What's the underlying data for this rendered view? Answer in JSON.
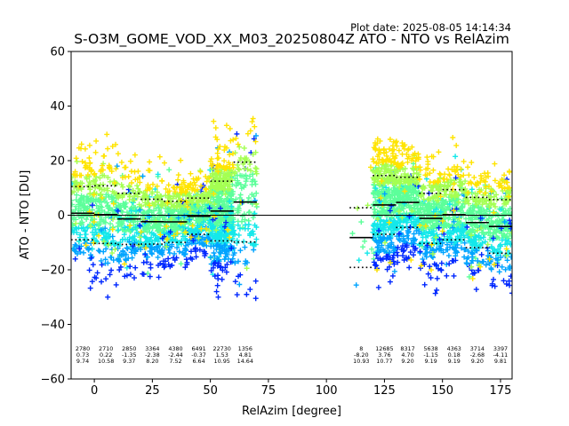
{
  "plot_date": "Plot date: 2025-08-05 14:14:34",
  "chart_data": {
    "type": "scatter",
    "title": "S-O3M_GOME_VOD_XX_M03_20250804Z ATO - NTO vs RelAzim",
    "xlabel": "RelAzim [degree]",
    "ylabel": "ATO - NTO [DU]",
    "xlim": [
      -10,
      180
    ],
    "ylim": [
      -60,
      60
    ],
    "xticks": [
      0,
      25,
      50,
      75,
      100,
      125,
      150,
      175
    ],
    "yticks": [
      -60,
      -40,
      -20,
      0,
      20,
      40,
      60
    ],
    "grid": false,
    "zero_line": 0,
    "bin_width": 10,
    "bins": [
      {
        "x": -5,
        "n": "2780",
        "mean": "0.73",
        "std": "9.74",
        "mean_v": 0.73,
        "std_v": 9.74
      },
      {
        "x": 5,
        "n": "2710",
        "mean": "0.22",
        "std": "10.58",
        "mean_v": 0.22,
        "std_v": 10.58
      },
      {
        "x": 15,
        "n": "2850",
        "mean": "-1.35",
        "std": "9.37",
        "mean_v": -1.35,
        "std_v": 9.37
      },
      {
        "x": 25,
        "n": "3364",
        "mean": "-2.38",
        "std": "8.20",
        "mean_v": -2.38,
        "std_v": 8.2
      },
      {
        "x": 35,
        "n": "4380",
        "mean": "-2.44",
        "std": "7.52",
        "mean_v": -2.44,
        "std_v": 7.52
      },
      {
        "x": 45,
        "n": "6491",
        "mean": "-0.37",
        "std": "6.64",
        "mean_v": -0.37,
        "std_v": 6.64
      },
      {
        "x": 55,
        "n": "22730",
        "mean": "1.53",
        "std": "10.95",
        "mean_v": 1.53,
        "std_v": 10.95
      },
      {
        "x": 65,
        "n": "1356",
        "mean": "4.81",
        "std": "14.64",
        "mean_v": 4.81,
        "std_v": 14.64
      },
      {
        "x": 115,
        "n": "8",
        "mean": "-8.20",
        "std": "10.93",
        "mean_v": -8.2,
        "std_v": 10.93
      },
      {
        "x": 125,
        "n": "12685",
        "mean": "3.76",
        "std": "10.77",
        "mean_v": 3.76,
        "std_v": 10.77
      },
      {
        "x": 135,
        "n": "8317",
        "mean": "4.70",
        "std": "9.20",
        "mean_v": 4.7,
        "std_v": 9.2
      },
      {
        "x": 145,
        "n": "5638",
        "mean": "-1.15",
        "std": "9.19",
        "mean_v": -1.15,
        "std_v": 9.19
      },
      {
        "x": 155,
        "n": "4363",
        "mean": "0.18",
        "std": "9.19",
        "mean_v": 0.18,
        "std_v": 9.19
      },
      {
        "x": 165,
        "n": "3714",
        "mean": "-2.68",
        "std": "9.20",
        "mean_v": -2.68,
        "std_v": 9.2
      },
      {
        "x": 175,
        "n": "3397",
        "mean": "-4.11",
        "std": "9.81",
        "mean_v": -4.11,
        "std_v": 9.81
      }
    ],
    "scatter_colors": [
      "#0028ff",
      "#00a4ff",
      "#14e8ea",
      "#5cff9a",
      "#a4ff52",
      "#ffe400"
    ],
    "marker": "plus"
  }
}
